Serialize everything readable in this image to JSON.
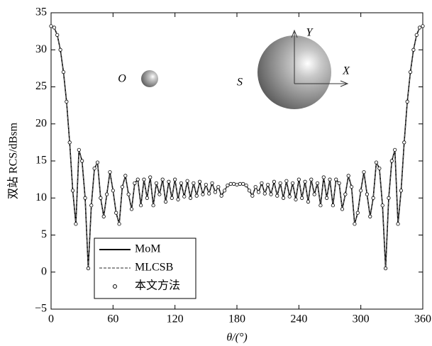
{
  "chart_data": {
    "type": "line",
    "x_label": "θ/(°)",
    "y_label": "双站 RCS/dBsm",
    "annotations": [
      "O",
      "S",
      "X",
      "Y"
    ],
    "xlim": [
      0,
      360
    ],
    "xticks": [
      0,
      60,
      120,
      180,
      240,
      300,
      360
    ],
    "ylim": [
      -5,
      35
    ],
    "yticks": [
      {
        "value": -5,
        "label": "−5"
      },
      0,
      5,
      10,
      15,
      20,
      25,
      30,
      35
    ],
    "legend": "lower left",
    "x": [
      0,
      3,
      6,
      9,
      12,
      15,
      18,
      21,
      24,
      27,
      30,
      33,
      36,
      39,
      42,
      45,
      48,
      51,
      54,
      57,
      60,
      63,
      66,
      69,
      72,
      75,
      78,
      81,
      84,
      87,
      90,
      93,
      96,
      99,
      102,
      105,
      108,
      111,
      114,
      117,
      120,
      123,
      126,
      129,
      132,
      135,
      138,
      141,
      144,
      147,
      150,
      153,
      156,
      159,
      162,
      165,
      168,
      171,
      174,
      177,
      180,
      183,
      186,
      189,
      192,
      195,
      198,
      201,
      204,
      207,
      210,
      213,
      216,
      219,
      222,
      225,
      228,
      231,
      234,
      237,
      240,
      243,
      246,
      249,
      252,
      255,
      258,
      261,
      264,
      267,
      270,
      273,
      276,
      279,
      282,
      285,
      288,
      291,
      294,
      297,
      300,
      303,
      306,
      309,
      312,
      315,
      318,
      321,
      324,
      327,
      330,
      333,
      336,
      339,
      342,
      345,
      348,
      351,
      354,
      357,
      360
    ],
    "series": [
      {
        "name": "MoM",
        "color": "#000000",
        "style": "solid",
        "values": [
          33.2,
          33.0,
          32.0,
          30.0,
          27.0,
          23.0,
          17.5,
          11.0,
          6.5,
          16.5,
          15.0,
          10.0,
          0.5,
          9.0,
          14.0,
          14.8,
          10.0,
          7.5,
          10.5,
          13.5,
          11.0,
          8.0,
          6.5,
          11.5,
          13.0,
          10.5,
          8.5,
          12.0,
          12.5,
          9.0,
          12.5,
          10.0,
          12.8,
          9.0,
          12.0,
          10.5,
          12.5,
          9.5,
          12.2,
          10.0,
          12.5,
          9.8,
          12.0,
          10.2,
          12.3,
          10.0,
          12.0,
          10.3,
          12.2,
          10.5,
          11.8,
          10.6,
          12.0,
          10.8,
          11.5,
          10.3,
          11.0,
          11.7,
          11.9,
          11.9,
          11.8,
          11.9,
          11.9,
          11.7,
          11.0,
          10.3,
          11.5,
          10.8,
          12.0,
          10.6,
          11.8,
          10.5,
          12.2,
          10.3,
          12.0,
          10.0,
          12.3,
          10.2,
          12.0,
          9.8,
          12.5,
          10.0,
          12.2,
          9.5,
          12.5,
          10.5,
          12.0,
          9.0,
          12.8,
          10.0,
          12.5,
          9.0,
          12.5,
          12.0,
          8.5,
          10.5,
          13.0,
          11.5,
          6.5,
          8.0,
          11.0,
          13.5,
          10.5,
          7.5,
          10.0,
          14.8,
          14.0,
          9.0,
          0.5,
          10.0,
          15.0,
          16.5,
          6.5,
          11.0,
          17.5,
          23.0,
          27.0,
          30.0,
          32.0,
          33.0,
          33.2
        ]
      },
      {
        "name": "MLCSB",
        "color": "#555555",
        "style": "dashed",
        "values": [
          33.2,
          33.0,
          32.0,
          30.0,
          27.0,
          23.0,
          17.5,
          11.0,
          6.5,
          16.5,
          15.0,
          10.0,
          0.5,
          9.0,
          14.0,
          14.8,
          10.0,
          7.5,
          10.5,
          13.5,
          11.0,
          8.0,
          6.5,
          11.5,
          13.0,
          10.5,
          8.5,
          12.0,
          12.5,
          9.0,
          12.5,
          10.0,
          12.8,
          9.0,
          12.0,
          10.5,
          12.5,
          9.5,
          12.2,
          10.0,
          12.5,
          9.8,
          12.0,
          10.2,
          12.3,
          10.0,
          12.0,
          10.3,
          12.2,
          10.5,
          11.8,
          10.6,
          12.0,
          10.8,
          11.5,
          10.3,
          11.0,
          11.7,
          11.9,
          11.9,
          11.8,
          11.9,
          11.9,
          11.7,
          11.0,
          10.3,
          11.5,
          10.8,
          12.0,
          10.6,
          11.8,
          10.5,
          12.2,
          10.3,
          12.0,
          10.0,
          12.3,
          10.2,
          12.0,
          9.8,
          12.5,
          10.0,
          12.2,
          9.5,
          12.5,
          10.5,
          12.0,
          9.0,
          12.8,
          10.0,
          12.5,
          9.0,
          12.5,
          12.0,
          8.5,
          10.5,
          13.0,
          11.5,
          6.5,
          8.0,
          11.0,
          13.5,
          10.5,
          7.5,
          10.0,
          14.8,
          14.0,
          9.0,
          0.5,
          10.0,
          15.0,
          16.5,
          6.5,
          11.0,
          17.5,
          23.0,
          27.0,
          30.0,
          32.0,
          33.0,
          33.2
        ]
      },
      {
        "name": "本文方法",
        "color": "#000000",
        "style": "circle",
        "values": [
          33.2,
          33.0,
          32.0,
          30.0,
          27.0,
          23.0,
          17.5,
          11.0,
          6.5,
          16.5,
          15.0,
          10.0,
          0.5,
          9.0,
          14.0,
          14.8,
          10.0,
          7.5,
          10.5,
          13.5,
          11.0,
          8.0,
          6.5,
          11.5,
          13.0,
          10.5,
          8.5,
          12.0,
          12.5,
          9.0,
          12.5,
          10.0,
          12.8,
          9.0,
          12.0,
          10.5,
          12.5,
          9.5,
          12.2,
          10.0,
          12.5,
          9.8,
          12.0,
          10.2,
          12.3,
          10.0,
          12.0,
          10.3,
          12.2,
          10.5,
          11.8,
          10.6,
          12.0,
          10.8,
          11.5,
          10.3,
          11.0,
          11.7,
          11.9,
          11.9,
          11.8,
          11.9,
          11.9,
          11.7,
          11.0,
          10.3,
          11.5,
          10.8,
          12.0,
          10.6,
          11.8,
          10.5,
          12.2,
          10.3,
          12.0,
          10.0,
          12.3,
          10.2,
          12.0,
          9.8,
          12.5,
          10.0,
          12.2,
          9.5,
          12.5,
          10.5,
          12.0,
          9.0,
          12.8,
          10.0,
          12.5,
          9.0,
          12.5,
          12.0,
          8.5,
          10.5,
          13.0,
          11.5,
          6.5,
          8.0,
          11.0,
          13.5,
          10.5,
          7.5,
          10.0,
          14.8,
          14.0,
          9.0,
          0.5,
          10.0,
          15.0,
          16.5,
          6.5,
          11.0,
          17.5,
          23.0,
          27.0,
          30.0,
          32.0,
          33.0,
          33.2
        ]
      }
    ]
  }
}
